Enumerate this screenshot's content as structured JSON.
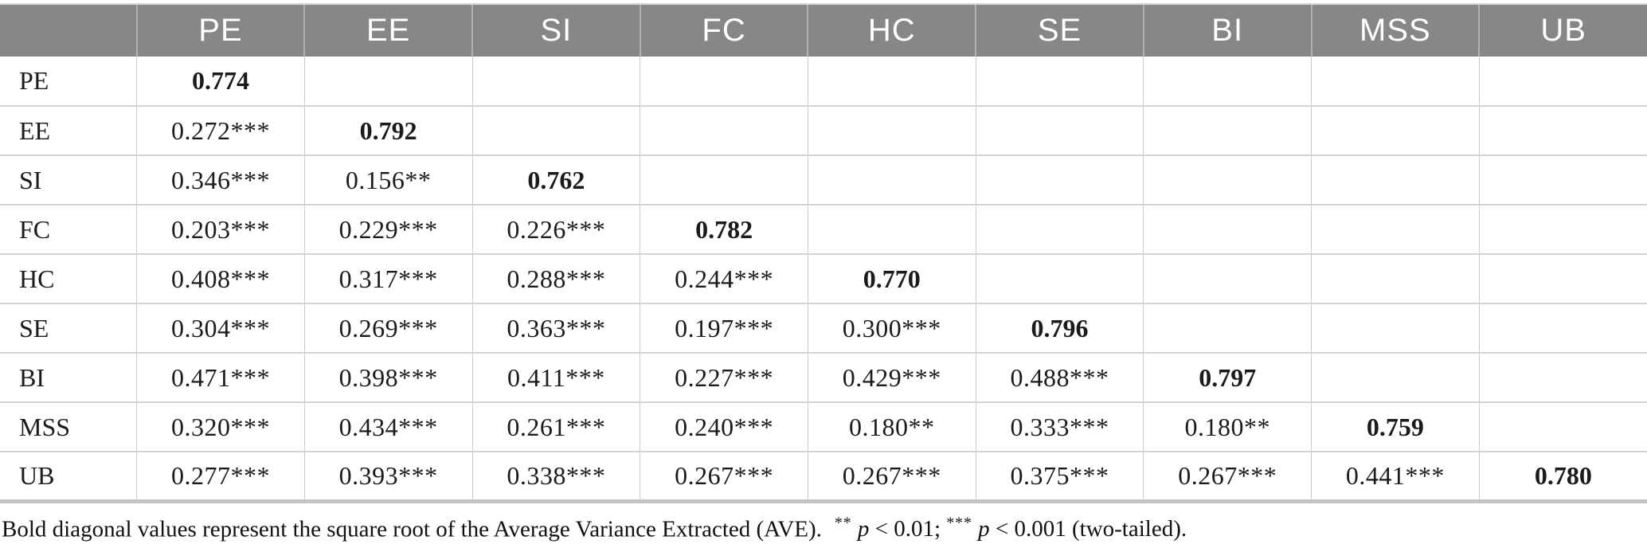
{
  "table": {
    "columns": [
      "",
      "PE",
      "EE",
      "SI",
      "FC",
      "HC",
      "SE",
      "BI",
      "MSS",
      "UB"
    ],
    "rows": [
      {
        "label": "PE",
        "diagonal": 0,
        "cells": [
          "0.774",
          "",
          "",
          "",
          "",
          "",
          "",
          "",
          ""
        ]
      },
      {
        "label": "EE",
        "diagonal": 1,
        "cells": [
          "0.272***",
          "0.792",
          "",
          "",
          "",
          "",
          "",
          "",
          ""
        ]
      },
      {
        "label": "SI",
        "diagonal": 2,
        "cells": [
          "0.346***",
          "0.156**",
          "0.762",
          "",
          "",
          "",
          "",
          "",
          ""
        ]
      },
      {
        "label": "FC",
        "diagonal": 3,
        "cells": [
          "0.203***",
          "0.229***",
          "0.226***",
          "0.782",
          "",
          "",
          "",
          "",
          ""
        ]
      },
      {
        "label": "HC",
        "diagonal": 4,
        "cells": [
          "0.408***",
          "0.317***",
          "0.288***",
          "0.244***",
          "0.770",
          "",
          "",
          "",
          ""
        ]
      },
      {
        "label": "SE",
        "diagonal": 5,
        "cells": [
          "0.304***",
          "0.269***",
          "0.363***",
          "0.197***",
          "0.300***",
          "0.796",
          "",
          "",
          ""
        ]
      },
      {
        "label": "BI",
        "diagonal": 6,
        "cells": [
          "0.471***",
          "0.398***",
          "0.411***",
          "0.227***",
          "0.429***",
          "0.488***",
          "0.797",
          "",
          ""
        ]
      },
      {
        "label": "MSS",
        "diagonal": 7,
        "cells": [
          "0.320***",
          "0.434***",
          "0.261***",
          "0.240***",
          "0.180**",
          "0.333***",
          "0.180**",
          "0.759",
          ""
        ]
      },
      {
        "label": "UB",
        "diagonal": 8,
        "cells": [
          "0.277***",
          "0.393***",
          "0.338***",
          "0.267***",
          "0.267***",
          "0.375***",
          "0.267***",
          "0.441***",
          "0.780"
        ]
      }
    ]
  },
  "footnote": {
    "main": "Bold diagonal values represent the square root of the Average Variance Extracted (AVE).",
    "sig1": {
      "stars": "**",
      "p": "p",
      "rest": " < 0.01; "
    },
    "sig2": {
      "stars": "***",
      "p": "p",
      "rest": " < 0.001 (two-tailed)."
    }
  },
  "colors": {
    "header_bg": "#878787",
    "header_text": "#ffffff",
    "header_divider": "#b2b2b2",
    "grid_line": "#cccccc",
    "row_line": "#d2d2d2",
    "table_bottom_border": "#c3c3c3",
    "body_text": "#1b1b1b"
  }
}
